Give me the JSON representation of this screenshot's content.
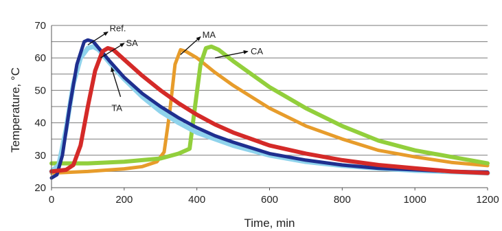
{
  "chart_data": {
    "type": "line",
    "xlabel": "Time, min",
    "ylabel": "Temperature, °C",
    "xlim": [
      0,
      1200
    ],
    "ylim": [
      20,
      70
    ],
    "xticks": [
      0,
      200,
      400,
      600,
      800,
      1000,
      1200
    ],
    "yticks": [
      20,
      30,
      40,
      50,
      60,
      70
    ],
    "grid": "horizontal",
    "legend": "none",
    "series": [
      {
        "name": "Ref.",
        "color": "#1f2f8f",
        "x": [
          0,
          15,
          30,
          50,
          70,
          90,
          100,
          115,
          130,
          160,
          200,
          250,
          300,
          350,
          400,
          450,
          500,
          600,
          700,
          800,
          900,
          1000,
          1100,
          1200
        ],
        "y": [
          23,
          24,
          30,
          45,
          58,
          65,
          65.5,
          65,
          63,
          59,
          54,
          49,
          45,
          41.5,
          38.5,
          36,
          34,
          30.5,
          28.5,
          27,
          26,
          25.5,
          25,
          24.8
        ]
      },
      {
        "name": "TA",
        "color": "#8fd3ec",
        "x": [
          0,
          20,
          40,
          60,
          80,
          100,
          115,
          130,
          160,
          200,
          250,
          300,
          350,
          400,
          450,
          500,
          600,
          700,
          800,
          900,
          1000,
          1100,
          1200
        ],
        "y": [
          25,
          27,
          38,
          52,
          60,
          63,
          63.5,
          62.5,
          58.5,
          53.5,
          48,
          43.5,
          40,
          37,
          35,
          33,
          30,
          28,
          26.8,
          26,
          25.3,
          24.9,
          24.5
        ]
      },
      {
        "name": "SA",
        "color": "#d42a28",
        "x": [
          0,
          40,
          60,
          80,
          100,
          120,
          140,
          155,
          170,
          200,
          250,
          300,
          350,
          400,
          450,
          500,
          600,
          700,
          800,
          900,
          1000,
          1100,
          1200
        ],
        "y": [
          25,
          25.5,
          27,
          33,
          45,
          56,
          62,
          63,
          62.5,
          59.5,
          54.5,
          50,
          46,
          42.5,
          39.5,
          37,
          33,
          30.5,
          28.5,
          27,
          26,
          25,
          24.5
        ]
      },
      {
        "name": "MA",
        "color": "#e79c2b",
        "x": [
          0,
          100,
          200,
          250,
          290,
          310,
          325,
          340,
          355,
          370,
          400,
          450,
          500,
          600,
          700,
          800,
          900,
          1000,
          1100,
          1200
        ],
        "y": [
          24.5,
          25,
          25.8,
          26.5,
          28,
          31,
          43,
          58,
          62.5,
          62,
          60,
          55.5,
          51.5,
          44.5,
          39,
          35,
          31.5,
          29.5,
          27.8,
          26.8
        ]
      },
      {
        "name": "CA",
        "color": "#92cf3c",
        "x": [
          0,
          100,
          200,
          300,
          350,
          380,
          395,
          410,
          425,
          440,
          460,
          500,
          550,
          600,
          700,
          800,
          900,
          1000,
          1100,
          1200
        ],
        "y": [
          27.5,
          27.5,
          28,
          29,
          30.5,
          32,
          45,
          58,
          63,
          63.5,
          62.5,
          59,
          55,
          51,
          44.5,
          39,
          34.5,
          31.5,
          29.5,
          27.5
        ]
      }
    ]
  }
}
